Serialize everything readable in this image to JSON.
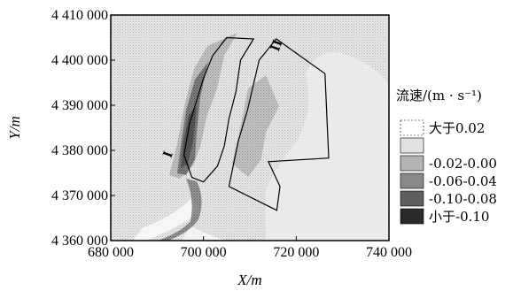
{
  "chart_data": {
    "type": "heatmap",
    "xlabel": "X/m",
    "ylabel": "Y/m",
    "xlim": [
      680000,
      740000
    ],
    "ylim": [
      4360000,
      4410000
    ],
    "x_ticks": [
      680000,
      700000,
      720000,
      740000
    ],
    "x_tick_labels": [
      "680 000",
      "700 000",
      "720 000",
      "740 000"
    ],
    "y_ticks": [
      4360000,
      4370000,
      4380000,
      4390000,
      4400000,
      4410000
    ],
    "y_tick_labels": [
      "4 360 000",
      "4 370 000",
      "4 380 000",
      "4 390 000",
      "4 400 000",
      "4 410 000"
    ],
    "legend": {
      "title": "流速/(m · s⁻¹)",
      "entries": [
        {
          "label": "大于0.02",
          "color": "#ffffff"
        },
        {
          "label": "",
          "color": "#e2e2e2"
        },
        {
          "label": "-0.02-0.00",
          "color": "#b4b4b4"
        },
        {
          "label": "-0.06-0.04",
          "color": "#888888"
        },
        {
          "label": "-0.10-0.08",
          "color": "#5e5e5e"
        },
        {
          "label": "小于-0.10",
          "color": "#2a2a2a"
        }
      ]
    },
    "outlines": [
      {
        "name": "I",
        "points": [
          [
            710800,
            4404700
          ],
          [
            708000,
            4400000
          ],
          [
            707000,
            4393000
          ],
          [
            705500,
            4387000
          ],
          [
            704500,
            4381000
          ],
          [
            703000,
            4376500
          ],
          [
            700000,
            4373000
          ],
          [
            697500,
            4374000
          ],
          [
            695800,
            4379000
          ],
          [
            697000,
            4386000
          ],
          [
            700000,
            4396000
          ],
          [
            702000,
            4401000
          ],
          [
            705000,
            4405000
          ]
        ]
      },
      {
        "name": "II",
        "points": [
          [
            712000,
            4400000
          ],
          [
            715700,
            4404700
          ],
          [
            726200,
            4397000
          ],
          [
            727000,
            4378300
          ],
          [
            714000,
            4377500
          ],
          [
            716500,
            4372000
          ],
          [
            715800,
            4366700
          ],
          [
            705500,
            4372000
          ],
          [
            707500,
            4382000
          ],
          [
            709500,
            4389000
          ]
        ]
      }
    ],
    "labels": [
      "I",
      "II"
    ]
  }
}
